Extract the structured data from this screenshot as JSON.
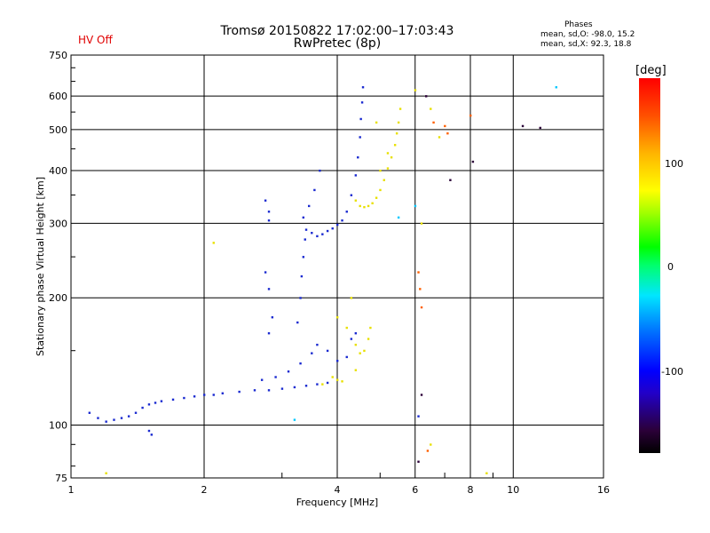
{
  "header": {
    "title": "Tromsø 20150822 17:02:00–17:03:43",
    "subtitle": "RwPretec (8p)",
    "hv_status": "HV Off"
  },
  "phases_box": {
    "title": "Phases",
    "o_mode": "mean, sd,O:  -98.0, 15.2",
    "x_mode": "mean, sd,X:  92.3, 18.8"
  },
  "colorbar": {
    "unit_label": "[deg]",
    "tick_100": "100",
    "tick_0": "0",
    "tick_m100": "-100"
  },
  "chart_data": {
    "type": "scatter",
    "xlabel": "Frequency [MHz]",
    "ylabel": "Stationary phase Virtual Height [km]",
    "xscale": "log",
    "yscale": "log",
    "xlim": [
      1,
      16
    ],
    "ylim": [
      75,
      750
    ],
    "xticks": [
      1,
      2,
      4,
      6,
      8,
      10,
      16
    ],
    "xtick_labels": [
      "1",
      "2",
      "4",
      "6",
      "8",
      "10",
      "16"
    ],
    "yticks": [
      75,
      100,
      200,
      300,
      400,
      500,
      600,
      750
    ],
    "ytick_labels": [
      "75",
      "100",
      "200",
      "300",
      "400",
      "500",
      "600",
      "750"
    ],
    "grid": true,
    "series": [
      {
        "color": "#1a2ad0",
        "points": [
          [
            1.1,
            107
          ],
          [
            1.15,
            104
          ],
          [
            1.2,
            102
          ],
          [
            1.25,
            103
          ],
          [
            1.3,
            104
          ],
          [
            1.35,
            105
          ],
          [
            1.4,
            107
          ],
          [
            1.45,
            110
          ],
          [
            1.5,
            112
          ],
          [
            1.55,
            113
          ],
          [
            1.6,
            114
          ],
          [
            1.7,
            115
          ],
          [
            1.8,
            116
          ],
          [
            1.9,
            117
          ],
          [
            2.0,
            118
          ],
          [
            2.1,
            118
          ],
          [
            2.2,
            119
          ],
          [
            2.4,
            120
          ],
          [
            2.6,
            121
          ],
          [
            2.8,
            121
          ],
          [
            3.0,
            122
          ],
          [
            3.2,
            123
          ],
          [
            3.4,
            124
          ],
          [
            3.6,
            125
          ],
          [
            3.8,
            126
          ],
          [
            2.7,
            128
          ],
          [
            2.9,
            130
          ],
          [
            3.1,
            134
          ],
          [
            3.3,
            140
          ],
          [
            3.5,
            148
          ],
          [
            3.6,
            155
          ],
          [
            3.8,
            150
          ],
          [
            4.0,
            142
          ],
          [
            4.2,
            145
          ],
          [
            4.3,
            160
          ],
          [
            4.4,
            165
          ],
          [
            3.25,
            175
          ],
          [
            3.3,
            200
          ],
          [
            3.32,
            225
          ],
          [
            3.35,
            250
          ],
          [
            3.38,
            275
          ],
          [
            3.4,
            290
          ],
          [
            3.5,
            285
          ],
          [
            3.6,
            280
          ],
          [
            3.7,
            283
          ],
          [
            3.8,
            288
          ],
          [
            3.9,
            292
          ],
          [
            4.0,
            298
          ],
          [
            4.1,
            305
          ],
          [
            4.2,
            320
          ],
          [
            4.3,
            350
          ],
          [
            4.4,
            390
          ],
          [
            4.45,
            430
          ],
          [
            4.5,
            480
          ],
          [
            4.52,
            530
          ],
          [
            4.55,
            580
          ],
          [
            4.57,
            630
          ],
          [
            3.35,
            310
          ],
          [
            3.45,
            330
          ],
          [
            3.55,
            360
          ],
          [
            3.65,
            400
          ],
          [
            2.75,
            340
          ],
          [
            2.8,
            320
          ],
          [
            2.8,
            305
          ],
          [
            2.75,
            230
          ],
          [
            2.8,
            210
          ],
          [
            2.85,
            180
          ],
          [
            2.8,
            165
          ],
          [
            1.5,
            97
          ],
          [
            1.52,
            95
          ],
          [
            6.1,
            105
          ]
        ]
      },
      {
        "color": "#e8e000",
        "points": [
          [
            4.4,
            340
          ],
          [
            4.5,
            330
          ],
          [
            4.6,
            328
          ],
          [
            4.7,
            330
          ],
          [
            4.8,
            335
          ],
          [
            4.9,
            345
          ],
          [
            5.0,
            360
          ],
          [
            5.1,
            380
          ],
          [
            5.2,
            405
          ],
          [
            5.3,
            430
          ],
          [
            5.4,
            460
          ],
          [
            5.45,
            490
          ],
          [
            5.5,
            520
          ],
          [
            5.55,
            560
          ],
          [
            5.0,
            400
          ],
          [
            5.2,
            440
          ],
          [
            4.9,
            520
          ],
          [
            4.3,
            200
          ],
          [
            4.0,
            180
          ],
          [
            4.2,
            170
          ],
          [
            4.4,
            155
          ],
          [
            4.5,
            148
          ],
          [
            4.6,
            150
          ],
          [
            4.7,
            160
          ],
          [
            4.75,
            170
          ],
          [
            3.9,
            130
          ],
          [
            4.0,
            128
          ],
          [
            4.1,
            127
          ],
          [
            3.7,
            125
          ],
          [
            4.4,
            135
          ],
          [
            6.0,
            620
          ],
          [
            6.5,
            560
          ],
          [
            6.8,
            480
          ],
          [
            1.2,
            77
          ],
          [
            8.7,
            77
          ],
          [
            2.1,
            270
          ],
          [
            6.2,
            300
          ],
          [
            6.5,
            90
          ]
        ]
      },
      {
        "color": "#ff6000",
        "points": [
          [
            6.6,
            520
          ],
          [
            7.0,
            510
          ],
          [
            7.1,
            490
          ],
          [
            6.1,
            230
          ],
          [
            6.15,
            210
          ],
          [
            6.2,
            190
          ],
          [
            8.0,
            540
          ],
          [
            6.4,
            87
          ]
        ]
      },
      {
        "color": "#00c8ff",
        "points": [
          [
            3.2,
            103
          ],
          [
            5.5,
            310
          ],
          [
            6.0,
            330
          ],
          [
            12.5,
            630
          ]
        ]
      },
      {
        "color": "#2b0038",
        "points": [
          [
            6.1,
            82
          ],
          [
            6.2,
            118
          ],
          [
            8.1,
            420
          ],
          [
            10.5,
            510
          ],
          [
            11.5,
            505
          ],
          [
            7.2,
            380
          ],
          [
            6.35,
            600
          ]
        ]
      }
    ]
  }
}
